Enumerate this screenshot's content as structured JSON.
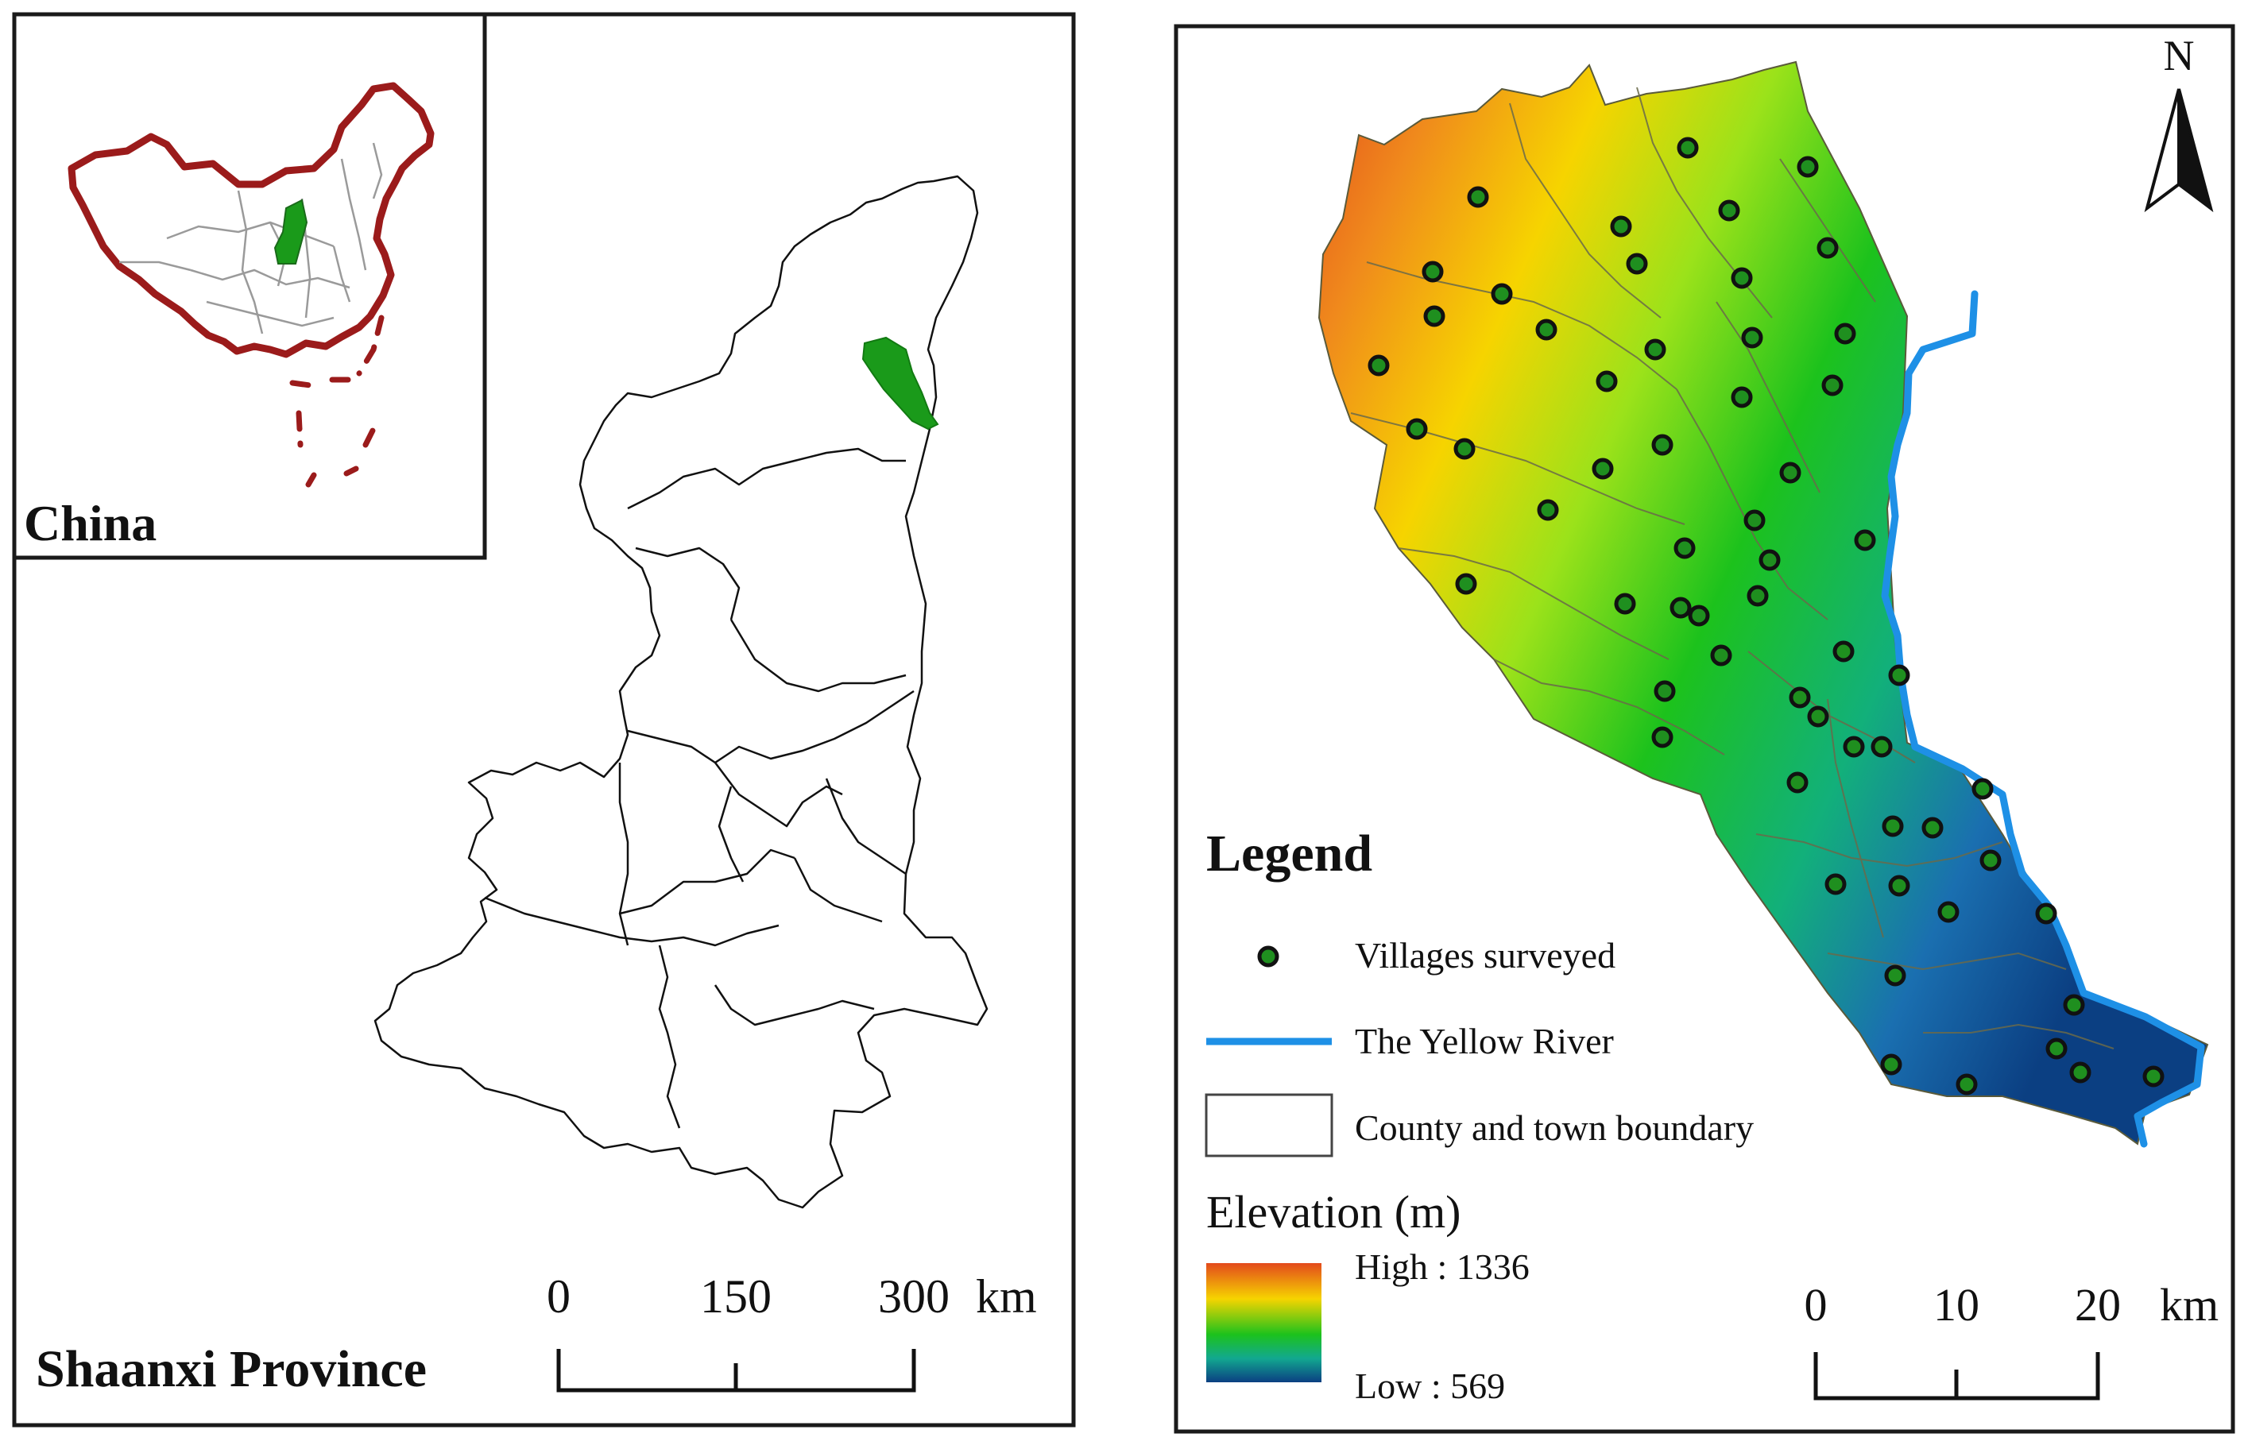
{
  "left_panel": {
    "inset_label": "China",
    "province_label": "Shaanxi Province",
    "scale": {
      "ticks": [
        "0",
        "150",
        "300"
      ],
      "unit": "km"
    }
  },
  "right_panel": {
    "north_label": "N",
    "legend": {
      "title": "Legend",
      "villages_label": "Villages surveyed",
      "river_label": "The Yellow River",
      "boundary_label": "County and town boundary",
      "elevation_title": "Elevation (m)",
      "high_label": "High : 1336",
      "low_label": "Low : 569"
    },
    "scale": {
      "ticks": [
        "0",
        "10",
        "20"
      ],
      "unit": "km"
    }
  },
  "colors": {
    "china_border": "#9b1b1b",
    "highlight": "#1a9a1a",
    "river": "#1e90e6",
    "village_fill": "#1f8f1f",
    "elev_high": "#e34a1c",
    "elev_mid": "#f6d400",
    "elev_green": "#1cc21c",
    "elev_low": "#0b3f82"
  },
  "villages": [
    [
      2124,
      186
    ],
    [
      2275,
      210
    ],
    [
      1860,
      248
    ],
    [
      2040,
      285
    ],
    [
      2176,
      265
    ],
    [
      2300,
      312
    ],
    [
      1803,
      342
    ],
    [
      2060,
      332
    ],
    [
      2192,
      350
    ],
    [
      1890,
      370
    ],
    [
      1805,
      398
    ],
    [
      1946,
      415
    ],
    [
      2205,
      425
    ],
    [
      2322,
      420
    ],
    [
      2083,
      440
    ],
    [
      1735,
      460
    ],
    [
      2022,
      480
    ],
    [
      2192,
      500
    ],
    [
      2306,
      485
    ],
    [
      1783,
      540
    ],
    [
      1843,
      565
    ],
    [
      2017,
      590
    ],
    [
      2092,
      560
    ],
    [
      2253,
      595
    ],
    [
      1948,
      642
    ],
    [
      2208,
      655
    ],
    [
      2120,
      690
    ],
    [
      2227,
      705
    ],
    [
      2347,
      680
    ],
    [
      1845,
      735
    ],
    [
      2115,
      765
    ],
    [
      2138,
      775
    ],
    [
      2045,
      760
    ],
    [
      2212,
      750
    ],
    [
      2320,
      820
    ],
    [
      2390,
      850
    ],
    [
      2166,
      825
    ],
    [
      2095,
      870
    ],
    [
      2265,
      878
    ],
    [
      2288,
      902
    ],
    [
      2333,
      940
    ],
    [
      2368,
      940
    ],
    [
      2092,
      928
    ],
    [
      2262,
      985
    ],
    [
      2495,
      993
    ],
    [
      2382,
      1040
    ],
    [
      2432,
      1042
    ],
    [
      2310,
      1113
    ],
    [
      2505,
      1083
    ],
    [
      2452,
      1148
    ],
    [
      2390,
      1115
    ],
    [
      2575,
      1150
    ],
    [
      2385,
      1228
    ],
    [
      2610,
      1265
    ],
    [
      2588,
      1320
    ],
    [
      2618,
      1350
    ],
    [
      2710,
      1355
    ],
    [
      2380,
      1340
    ],
    [
      2475,
      1365
    ]
  ]
}
